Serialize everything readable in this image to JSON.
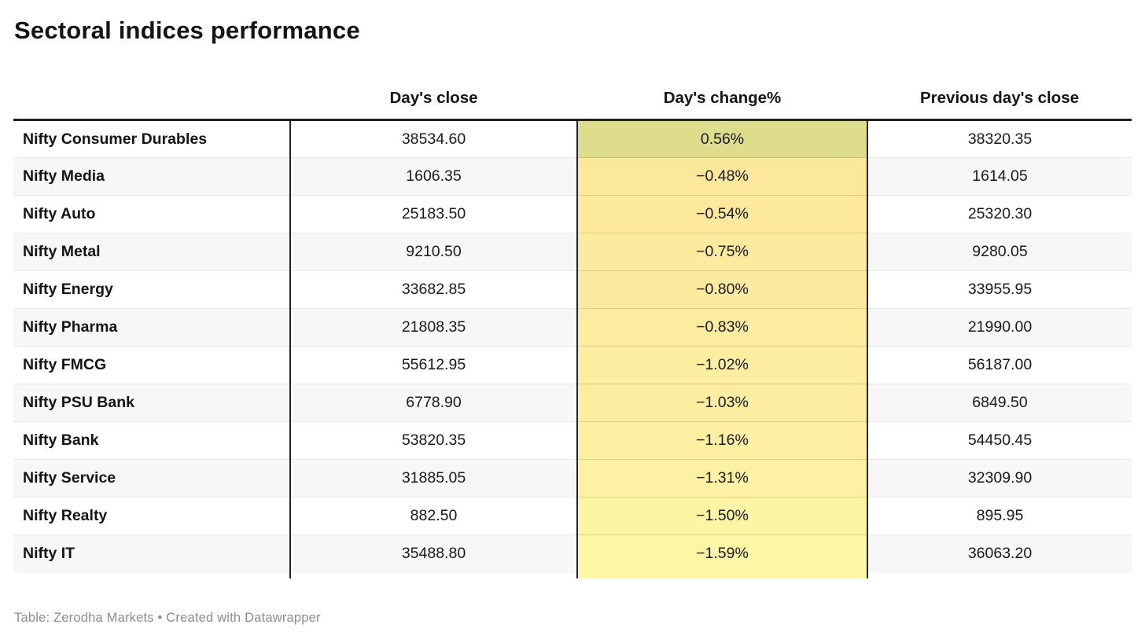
{
  "title": "Sectoral indices performance",
  "table": {
    "columns": [
      {
        "label": ""
      },
      {
        "label": "Day's close"
      },
      {
        "label": "Day's change%"
      },
      {
        "label": "Previous day's close"
      }
    ],
    "rows": [
      {
        "label": "Nifty Consumer Durables",
        "close": "38534.60",
        "change": "0.56%",
        "prev": "38320.35",
        "change_bg": "#dedd8b"
      },
      {
        "label": "Nifty Media",
        "close": "1606.35",
        "change": "−0.48%",
        "prev": "1614.05",
        "change_bg": "#fce89b"
      },
      {
        "label": "Nifty Auto",
        "close": "25183.50",
        "change": "−0.54%",
        "prev": "25320.30",
        "change_bg": "#fce99c"
      },
      {
        "label": "Nifty Metal",
        "close": "9210.50",
        "change": "−0.75%",
        "prev": "9280.05",
        "change_bg": "#fceb9e"
      },
      {
        "label": "Nifty Energy",
        "close": "33682.85",
        "change": "−0.80%",
        "prev": "33955.95",
        "change_bg": "#fceb9f"
      },
      {
        "label": "Nifty Pharma",
        "close": "21808.35",
        "change": "−0.83%",
        "prev": "21990.00",
        "change_bg": "#fcec9f"
      },
      {
        "label": "Nifty FMCG",
        "close": "55612.95",
        "change": "−1.02%",
        "prev": "56187.00",
        "change_bg": "#fceea1"
      },
      {
        "label": "Nifty PSU Bank",
        "close": "6778.90",
        "change": "−1.03%",
        "prev": "6849.50",
        "change_bg": "#fceea1"
      },
      {
        "label": "Nifty Bank",
        "close": "53820.35",
        "change": "−1.16%",
        "prev": "54450.45",
        "change_bg": "#fdf0a2"
      },
      {
        "label": "Nifty Service",
        "close": "31885.05",
        "change": "−1.31%",
        "prev": "32309.90",
        "change_bg": "#fdf2a3"
      },
      {
        "label": "Nifty Realty",
        "close": "882.50",
        "change": "−1.50%",
        "prev": "895.95",
        "change_bg": "#fdf5a4"
      },
      {
        "label": "Nifty IT",
        "close": "35488.80",
        "change": "−1.59%",
        "prev": "36063.20",
        "change_bg": "#fdf6a5"
      }
    ]
  },
  "footer": "Table: Zerodha Markets • Created with Datawrapper",
  "colors": {
    "positive_change_bg": "#dedd8b",
    "negative_change_bg_range": [
      "#fce89b",
      "#fdf6a5"
    ],
    "stripe_bg": "#f7f7f7",
    "border_dark": "#232323",
    "separator": "#e9e9e9",
    "footer_text": "#8d8d8d"
  },
  "chart_data": {
    "type": "table",
    "title": "Sectoral indices performance",
    "columns": [
      "Day's close",
      "Day's change%",
      "Previous day's close"
    ],
    "rows": [
      [
        "Nifty Consumer Durables",
        38534.6,
        0.56,
        38320.35
      ],
      [
        "Nifty Media",
        1606.35,
        -0.48,
        1614.05
      ],
      [
        "Nifty Auto",
        25183.5,
        -0.54,
        25320.3
      ],
      [
        "Nifty Metal",
        9210.5,
        -0.75,
        9280.05
      ],
      [
        "Nifty Energy",
        33682.85,
        -0.8,
        33955.95
      ],
      [
        "Nifty Pharma",
        21808.35,
        -0.83,
        21990.0
      ],
      [
        "Nifty FMCG",
        55612.95,
        -1.02,
        56187.0
      ],
      [
        "Nifty PSU Bank",
        6778.9,
        -1.03,
        6849.5
      ],
      [
        "Nifty Bank",
        53820.35,
        -1.16,
        54450.45
      ],
      [
        "Nifty Service",
        31885.05,
        -1.31,
        32309.9
      ],
      [
        "Nifty Realty",
        882.5,
        -1.5,
        895.95
      ],
      [
        "Nifty IT",
        35488.8,
        -1.59,
        36063.2
      ]
    ],
    "notes": "Heatmap coloring on Day's change% column: highest value olive-green, lower values fade to pale yellow",
    "footer": "Table: Zerodha Markets • Created with Datawrapper"
  }
}
